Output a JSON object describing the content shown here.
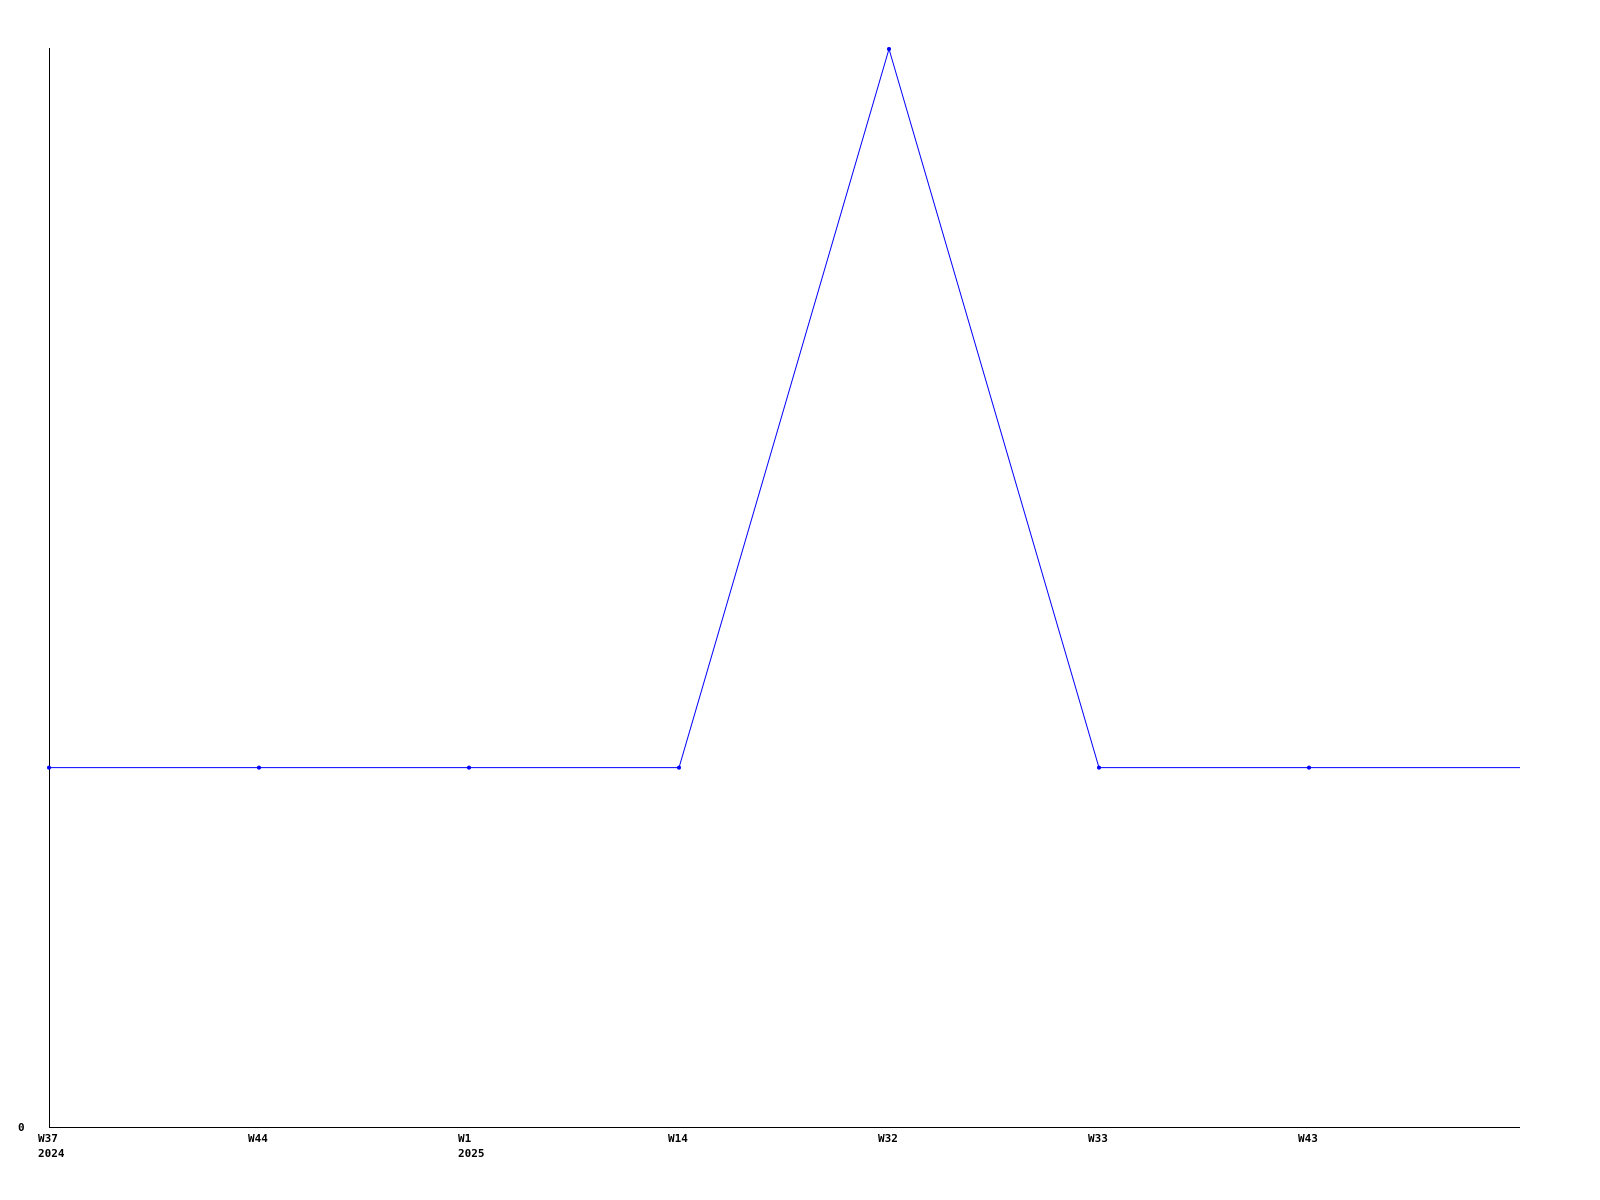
{
  "chart_data": {
    "type": "line",
    "title": "",
    "xlabel": "",
    "ylabel": "",
    "categories": [
      "W37",
      "W44",
      "W1",
      "W14",
      "W32",
      "W33",
      "W43"
    ],
    "category_sublabels": [
      "2024",
      "",
      "2025",
      "",
      "",
      "",
      ""
    ],
    "series": [
      {
        "values": [
          1,
          1,
          1,
          1,
          3,
          1,
          1
        ],
        "color": "#0000ff"
      }
    ],
    "y_tick_labels": [
      "0"
    ],
    "ylim": [
      0,
      3
    ],
    "grid": false,
    "legend": "none",
    "line_extends_to_right_edge": true
  }
}
